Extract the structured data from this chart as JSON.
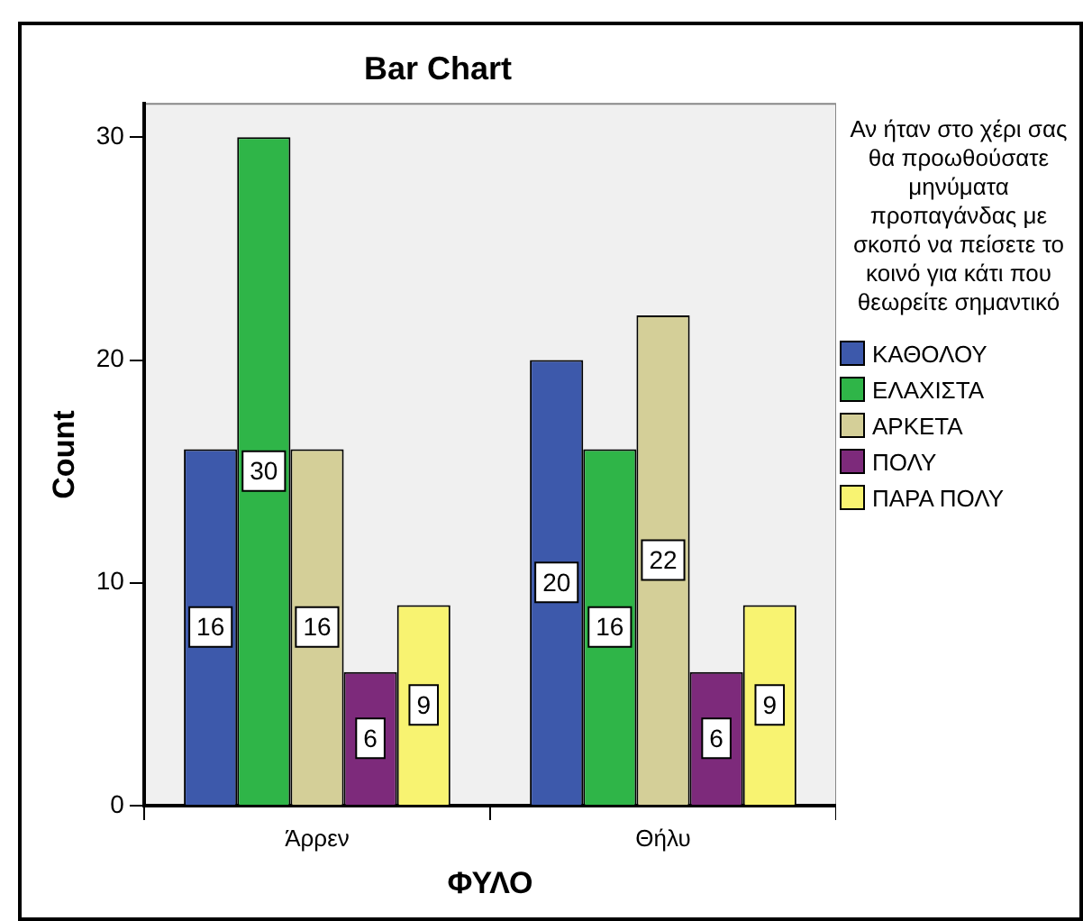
{
  "chart_data": {
    "type": "bar",
    "title": "Bar Chart",
    "xlabel": "ΦΥΛΟ",
    "ylabel": "Count",
    "legend_title": "Αν ήταν στο χέρι σας θα προωθούσατε μηνύματα προπαγάνδας με σκοπό να πείσετε το κοινό για κάτι που θεωρείτε σημαντικό",
    "categories": [
      "Άρρεν",
      "Θήλυ"
    ],
    "series": [
      {
        "name": "ΚΑΘΟΛΟΥ",
        "color": "#3d59ab",
        "values": [
          16,
          20
        ]
      },
      {
        "name": "ΕΛΑΧΙΣΤΑ",
        "color": "#2fb548",
        "values": [
          30,
          16
        ]
      },
      {
        "name": "ΑΡΚΕΤΑ",
        "color": "#d4cf98",
        "values": [
          16,
          22
        ]
      },
      {
        "name": "ΠΟΛΥ",
        "color": "#7d2a7b",
        "values": [
          6,
          6
        ]
      },
      {
        "name": "ΠΑΡΑ ΠΟΛΥ",
        "color": "#f8f371",
        "values": [
          9,
          9
        ]
      }
    ],
    "ylim": [
      0,
      31.5
    ],
    "yticks": [
      0,
      10,
      20,
      30
    ],
    "grid": false,
    "legend": "right",
    "data_labels": true
  }
}
